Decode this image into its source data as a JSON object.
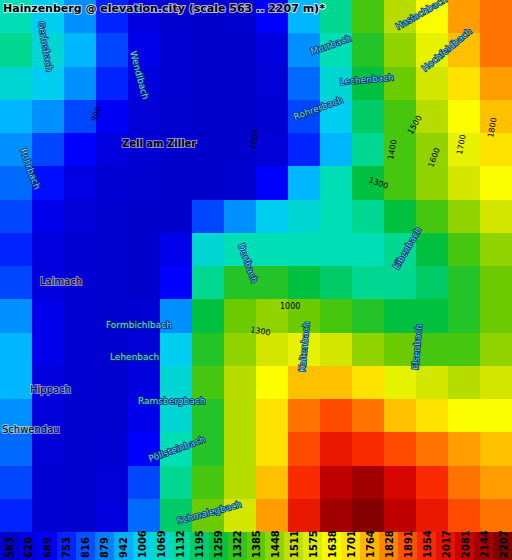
{
  "chart_data": {
    "type": "heatmap",
    "title": "Hainzenberg @ elevation.city (scale 563 .. 2207 m)*",
    "tick_labels": false,
    "zlim": [
      563,
      2207
    ],
    "zticks": [
      563,
      626,
      689,
      753,
      816,
      879,
      942,
      1006,
      1069,
      1132,
      1195,
      1259,
      1322,
      1385,
      1448,
      1511,
      1575,
      1638,
      1701,
      1764,
      1828,
      1891,
      1954,
      2017,
      2081,
      2144,
      2207
    ],
    "z": [
      [
        1100,
        1000,
        900,
        750,
        620,
        580,
        575,
        580,
        700,
        950,
        1150,
        1350,
        1500,
        1650,
        1800,
        1850
      ],
      [
        1150,
        1050,
        950,
        800,
        650,
        590,
        575,
        575,
        620,
        900,
        1100,
        1300,
        1450,
        1600,
        1750,
        1850
      ],
      [
        1050,
        1000,
        900,
        750,
        620,
        585,
        575,
        575,
        600,
        850,
        1050,
        1250,
        1400,
        1550,
        1700,
        1800
      ],
      [
        950,
        900,
        800,
        680,
        600,
        580,
        575,
        575,
        590,
        800,
        1000,
        1200,
        1350,
        1500,
        1650,
        1750
      ],
      [
        900,
        800,
        700,
        620,
        590,
        575,
        575,
        575,
        600,
        750,
        950,
        1150,
        1350,
        1450,
        1600,
        1700
      ],
      [
        850,
        720,
        630,
        590,
        580,
        575,
        575,
        580,
        700,
        950,
        1100,
        1250,
        1350,
        1450,
        1550,
        1650
      ],
      [
        800,
        650,
        600,
        580,
        575,
        575,
        800,
        900,
        1000,
        1050,
        1100,
        1150,
        1250,
        1350,
        1450,
        1550
      ],
      [
        750,
        620,
        590,
        580,
        575,
        650,
        1050,
        1100,
        1100,
        1100,
        1100,
        1100,
        1150,
        1250,
        1350,
        1450
      ],
      [
        800,
        620,
        590,
        580,
        575,
        700,
        1150,
        1300,
        1300,
        1250,
        1200,
        1150,
        1150,
        1200,
        1300,
        1400
      ],
      [
        900,
        650,
        590,
        580,
        590,
        900,
        1250,
        1400,
        1450,
        1400,
        1350,
        1300,
        1250,
        1250,
        1300,
        1400
      ],
      [
        950,
        650,
        590,
        580,
        600,
        1000,
        1300,
        1450,
        1550,
        1600,
        1550,
        1450,
        1400,
        1350,
        1350,
        1450
      ],
      [
        950,
        620,
        585,
        580,
        620,
        1050,
        1350,
        1500,
        1650,
        1750,
        1750,
        1700,
        1600,
        1550,
        1500,
        1550
      ],
      [
        900,
        610,
        580,
        580,
        650,
        1050,
        1300,
        1500,
        1700,
        1850,
        1900,
        1850,
        1750,
        1700,
        1650,
        1650
      ],
      [
        850,
        600,
        580,
        585,
        700,
        1100,
        1300,
        1500,
        1700,
        1900,
        2000,
        1950,
        1900,
        1850,
        1800,
        1750
      ],
      [
        800,
        590,
        580,
        600,
        800,
        1150,
        1350,
        1500,
        1750,
        1950,
        2100,
        2150,
        2050,
        1950,
        1850,
        1800
      ],
      [
        750,
        585,
        580,
        620,
        850,
        1200,
        1400,
        1550,
        1800,
        2000,
        2150,
        2200,
        2100,
        2000,
        1900,
        1850
      ]
    ],
    "labels": [
      "Zell am Ziller",
      "Laimach",
      "Hippach",
      "Schwendau",
      "Gerlosbach",
      "Rohrbach",
      "Wendlbach",
      "Haslachbach",
      "Hochfeldbach",
      "Murrbach",
      "Lechenbach",
      "Rohrerbach",
      "Dorfbach",
      "Kaltenbach",
      "Eibenbach",
      "Elsenbach",
      "Formbichlbach",
      "Lehenbach",
      "Ramsbergbach",
      "Pöllsteinbach",
      "Schmalegbach",
      "900",
      "1000",
      "1300",
      "1400",
      "1500",
      "1600",
      "1700",
      "1800",
      "1000",
      "1300"
    ]
  }
}
